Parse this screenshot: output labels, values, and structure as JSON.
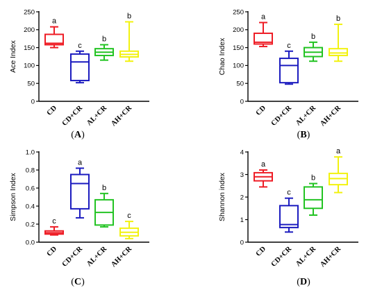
{
  "colors": {
    "CD": "#ee1c25",
    "CD+CR": "#1b1bbf",
    "AL+CR": "#22c322",
    "AH+CR": "#f2f20f"
  },
  "chart_data": [
    {
      "type": "box",
      "panel": "A",
      "ylabel": "Ace Index",
      "ylim": [
        0,
        250
      ],
      "yticks": [
        0,
        50,
        100,
        150,
        200,
        250
      ],
      "categories": [
        "CD",
        "CD+CR",
        "AL+CR",
        "AH+CR"
      ],
      "boxes": [
        {
          "min": 150,
          "q1": 158,
          "median": 162,
          "q3": 187,
          "max": 208,
          "letter": "a"
        },
        {
          "min": 52,
          "q1": 58,
          "median": 110,
          "q3": 132,
          "max": 140,
          "letter": "c"
        },
        {
          "min": 115,
          "q1": 128,
          "median": 137,
          "q3": 147,
          "max": 158,
          "letter": "b"
        },
        {
          "min": 112,
          "q1": 124,
          "median": 131,
          "q3": 140,
          "max": 222,
          "letter": "b"
        }
      ]
    },
    {
      "type": "box",
      "panel": "B",
      "ylabel": "Chao Index",
      "ylim": [
        0,
        250
      ],
      "yticks": [
        0,
        50,
        100,
        150,
        200,
        250
      ],
      "categories": [
        "CD",
        "CD+CR",
        "AL+CR",
        "AH+CR"
      ],
      "boxes": [
        {
          "min": 153,
          "q1": 160,
          "median": 165,
          "q3": 190,
          "max": 220,
          "letter": "a"
        },
        {
          "min": 48,
          "q1": 52,
          "median": 100,
          "q3": 120,
          "max": 140,
          "letter": "c"
        },
        {
          "min": 112,
          "q1": 125,
          "median": 137,
          "q3": 150,
          "max": 165,
          "letter": "b"
        },
        {
          "min": 112,
          "q1": 128,
          "median": 135,
          "q3": 147,
          "max": 215,
          "letter": "b"
        }
      ]
    },
    {
      "type": "box",
      "panel": "C",
      "ylabel": "Simpson Index",
      "ylim": [
        0,
        1.0
      ],
      "yticks": [
        "0.0",
        "0.2",
        "0.4",
        "0.6",
        "0.8",
        "1.0"
      ],
      "categories": [
        "CD",
        "CD+CR",
        "AL+CR",
        "AH+CR"
      ],
      "boxes": [
        {
          "min": 0.08,
          "q1": 0.09,
          "median": 0.105,
          "q3": 0.125,
          "max": 0.17,
          "letter": "c"
        },
        {
          "min": 0.27,
          "q1": 0.37,
          "median": 0.65,
          "q3": 0.75,
          "max": 0.82,
          "letter": "a"
        },
        {
          "min": 0.17,
          "q1": 0.19,
          "median": 0.33,
          "q3": 0.47,
          "max": 0.54,
          "letter": "b"
        },
        {
          "min": 0.04,
          "q1": 0.07,
          "median": 0.11,
          "q3": 0.155,
          "max": 0.23,
          "letter": "c"
        }
      ]
    },
    {
      "type": "box",
      "panel": "D",
      "ylabel": "Shannon index",
      "ylim": [
        0,
        4
      ],
      "yticks": [
        0,
        1,
        2,
        3,
        4
      ],
      "categories": [
        "CD",
        "CD+CR",
        "AL+CR",
        "AH+CR"
      ],
      "boxes": [
        {
          "min": 2.45,
          "q1": 2.72,
          "median": 2.9,
          "q3": 3.08,
          "max": 3.2,
          "letter": "a"
        },
        {
          "min": 0.45,
          "q1": 0.65,
          "median": 0.78,
          "q3": 1.62,
          "max": 1.95,
          "letter": "c"
        },
        {
          "min": 1.2,
          "q1": 1.5,
          "median": 1.88,
          "q3": 2.45,
          "max": 2.6,
          "letter": "b"
        },
        {
          "min": 2.2,
          "q1": 2.55,
          "median": 2.82,
          "q3": 3.05,
          "max": 3.78,
          "letter": "a"
        }
      ]
    }
  ],
  "panel_labels": [
    "A",
    "B",
    "C",
    "D"
  ]
}
